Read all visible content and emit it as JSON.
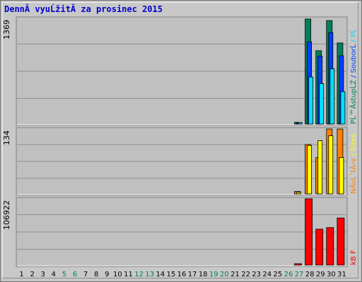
{
  "title": "DennĂ­ vyuĹžitĂ­ za prosinec 2015",
  "colors": {
    "frame_bg": "#c8c8c8",
    "plot_bg": "#c0c0c0",
    "grid": "#909090",
    "hits": "#00805c",
    "files": "#0040ff",
    "pages": "#00e0ff",
    "visits": "#ff8000",
    "sites": "#ffff00",
    "kbytes": "#ff0000",
    "weekend_label": "#00805c",
    "weekday_label": "#000000"
  },
  "chart_data": [
    {
      "type": "bar",
      "panel": "hits-files-pages",
      "ymax_label": "1369",
      "ylim": [
        0,
        1369
      ],
      "legend_text": "PĹ™Ă­stupĹŻ / SouborĹ / PĹ",
      "categories": [
        "1",
        "2",
        "3",
        "4",
        "5",
        "6",
        "7",
        "8",
        "9",
        "10",
        "11",
        "12",
        "13",
        "14",
        "15",
        "16",
        "17",
        "18",
        "19",
        "20",
        "21",
        "22",
        "23",
        "24",
        "25",
        "26",
        "27",
        "28",
        "29",
        "30",
        "31"
      ],
      "series": [
        {
          "name": "PĹ™Ă­stupĹŻ",
          "values": [
            0,
            0,
            0,
            0,
            0,
            0,
            0,
            0,
            0,
            0,
            0,
            0,
            0,
            0,
            0,
            0,
            0,
            0,
            0,
            0,
            0,
            0,
            0,
            0,
            0,
            0,
            22,
            1360,
            950,
            1340,
            1050
          ]
        },
        {
          "name": "SouborĹ",
          "values": [
            0,
            0,
            0,
            0,
            0,
            0,
            0,
            0,
            0,
            0,
            0,
            0,
            0,
            0,
            0,
            0,
            0,
            0,
            0,
            0,
            0,
            0,
            0,
            0,
            0,
            0,
            18,
            1065,
            880,
            1185,
            885
          ]
        },
        {
          "name": "PĹ",
          "values": [
            0,
            0,
            0,
            0,
            0,
            0,
            0,
            0,
            0,
            0,
            0,
            0,
            0,
            0,
            0,
            0,
            0,
            0,
            0,
            0,
            0,
            0,
            0,
            0,
            0,
            0,
            12,
            610,
            525,
            715,
            420
          ]
        }
      ]
    },
    {
      "type": "bar",
      "panel": "visits-sites",
      "ymax_label": "134",
      "ylim": [
        0,
        134
      ],
      "legend_text": "NĂ­vĹˇtÄ›v / Sites",
      "categories": [
        "1",
        "2",
        "3",
        "4",
        "5",
        "6",
        "7",
        "8",
        "9",
        "10",
        "11",
        "12",
        "13",
        "14",
        "15",
        "16",
        "17",
        "18",
        "19",
        "20",
        "21",
        "22",
        "23",
        "24",
        "25",
        "26",
        "27",
        "28",
        "29",
        "30",
        "31"
      ],
      "series": [
        {
          "name": "NĂ­vĹˇtÄ›v",
          "values": [
            0,
            0,
            0,
            0,
            0,
            0,
            0,
            0,
            0,
            0,
            0,
            0,
            0,
            0,
            0,
            0,
            0,
            0,
            0,
            0,
            0,
            0,
            0,
            0,
            0,
            0,
            5,
            102,
            75,
            134,
            134
          ]
        },
        {
          "name": "Sites",
          "values": [
            0,
            0,
            0,
            0,
            0,
            0,
            0,
            0,
            0,
            0,
            0,
            0,
            0,
            0,
            0,
            0,
            0,
            0,
            0,
            0,
            0,
            0,
            0,
            0,
            0,
            0,
            3,
            100,
            110,
            120,
            75
          ]
        }
      ]
    },
    {
      "type": "bar",
      "panel": "kbytes",
      "ymax_label": "106922",
      "ylim": [
        0,
        106922
      ],
      "legend_text": "kB F",
      "categories": [
        "1",
        "2",
        "3",
        "4",
        "5",
        "6",
        "7",
        "8",
        "9",
        "10",
        "11",
        "12",
        "13",
        "14",
        "15",
        "16",
        "17",
        "18",
        "19",
        "20",
        "21",
        "22",
        "23",
        "24",
        "25",
        "26",
        "27",
        "28",
        "29",
        "30",
        "31"
      ],
      "series": [
        {
          "name": "kB F",
          "values": [
            0,
            0,
            0,
            0,
            0,
            0,
            0,
            0,
            0,
            0,
            0,
            0,
            0,
            0,
            0,
            0,
            0,
            0,
            0,
            0,
            0,
            0,
            0,
            0,
            0,
            0,
            1200,
            106922,
            58000,
            60500,
            76000
          ]
        }
      ]
    }
  ],
  "weekend_days": [
    5,
    6,
    12,
    13,
    19,
    20,
    26,
    27
  ]
}
